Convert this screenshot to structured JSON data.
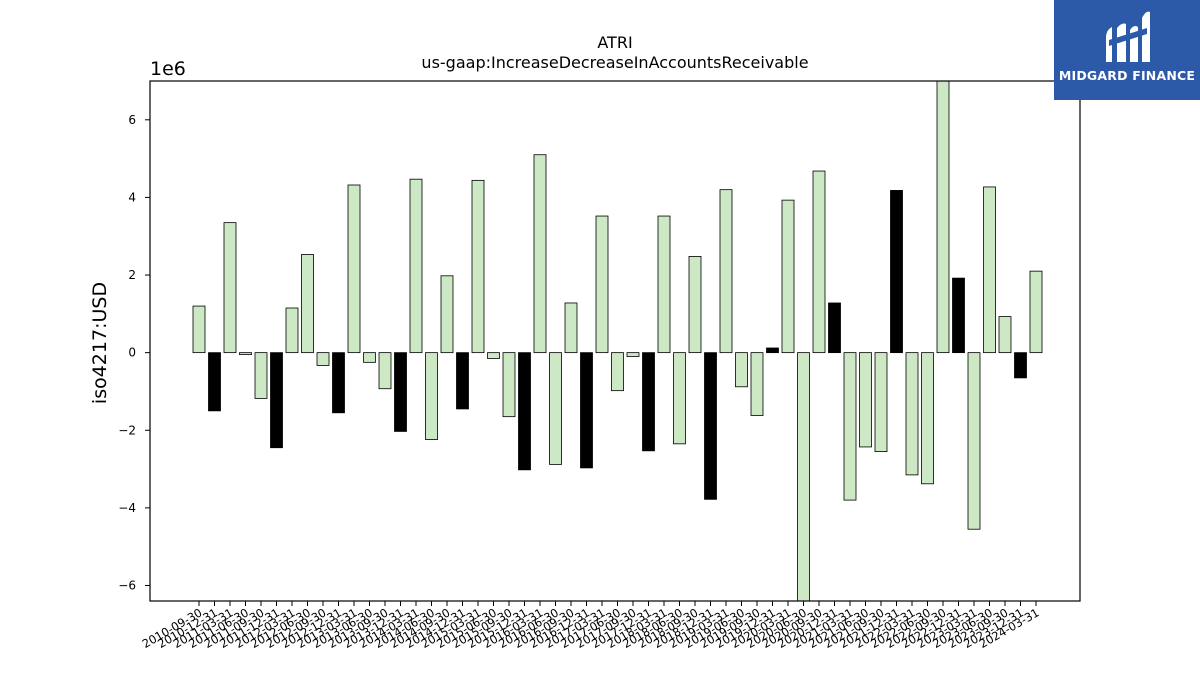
{
  "brand": {
    "name": "MIDGARD FINANCE"
  },
  "chart_data": {
    "type": "bar",
    "title": "ATRI",
    "subtitle": "us-gaap:IncreaseDecreaseInAccountsReceivable",
    "ylabel": "iso4217:USD",
    "xlabel": "",
    "offset_label": "1e6",
    "y_scale_factor": 1000000,
    "ylim": [
      -6.4,
      7.0
    ],
    "yticks": [
      -6,
      -4,
      -2,
      0,
      2,
      4,
      6
    ],
    "grid": false,
    "legend": "none",
    "colors": {
      "positive_period": "#cce8c4",
      "negative_period": "#000000",
      "edge": "#000000"
    },
    "categories": [
      "2010-09-30",
      "2010-12-31",
      "2011-03-31",
      "2011-06-30",
      "2011-09-30",
      "2011-12-31",
      "2012-03-31",
      "2012-06-30",
      "2012-09-30",
      "2012-12-31",
      "2013-03-31",
      "2013-06-30",
      "2013-09-30",
      "2013-12-31",
      "2014-03-31",
      "2014-06-30",
      "2014-09-30",
      "2014-12-31",
      "2015-03-31",
      "2015-06-30",
      "2015-09-30",
      "2015-12-31",
      "2016-03-31",
      "2016-06-30",
      "2016-09-30",
      "2016-12-31",
      "2017-03-31",
      "2017-06-30",
      "2017-09-30",
      "2017-12-31",
      "2018-03-31",
      "2018-06-30",
      "2018-09-30",
      "2018-12-31",
      "2019-03-31",
      "2019-06-30",
      "2019-09-30",
      "2019-12-31",
      "2020-03-31",
      "2020-06-30",
      "2020-09-30",
      "2020-12-31",
      "2021-03-31",
      "2021-06-30",
      "2021-09-30",
      "2021-12-31",
      "2022-03-31",
      "2022-06-30",
      "2022-09-30",
      "2022-12-31",
      "2023-03-31",
      "2023-06-30",
      "2023-09-30",
      "2023-12-31",
      "2024-03-31"
    ],
    "series": [
      {
        "values": [
          1.2,
          -1.5,
          3.35,
          -0.05,
          -1.18,
          -2.45,
          1.15,
          2.53,
          -0.33,
          -1.55,
          4.32,
          -0.25,
          -0.93,
          -2.03,
          4.47,
          -2.24,
          1.98,
          -1.45,
          4.44,
          -0.15,
          -1.65,
          -3.02,
          5.1,
          -2.88,
          1.28,
          -2.97,
          3.52,
          -0.98,
          -0.1,
          -2.53,
          3.52,
          -2.35,
          2.48,
          -3.78,
          4.2,
          -0.88,
          -1.62,
          0.12,
          3.93,
          -6.4,
          4.68,
          1.28,
          -3.8,
          -2.43,
          -2.55,
          4.18,
          -3.15,
          -3.38,
          7.0,
          1.92,
          -4.55,
          4.27,
          0.93,
          -0.65,
          2.1
        ],
        "fill": [
          "g",
          "k",
          "g",
          "g",
          "g",
          "k",
          "g",
          "g",
          "g",
          "k",
          "g",
          "g",
          "g",
          "k",
          "g",
          "g",
          "g",
          "k",
          "g",
          "g",
          "g",
          "k",
          "g",
          "g",
          "g",
          "k",
          "g",
          "g",
          "g",
          "k",
          "g",
          "g",
          "g",
          "k",
          "g",
          "g",
          "g",
          "k",
          "g",
          "g",
          "g",
          "k",
          "g",
          "g",
          "g",
          "k",
          "g",
          "g",
          "g",
          "k",
          "g",
          "g",
          "g",
          "k",
          "g"
        ]
      }
    ]
  }
}
